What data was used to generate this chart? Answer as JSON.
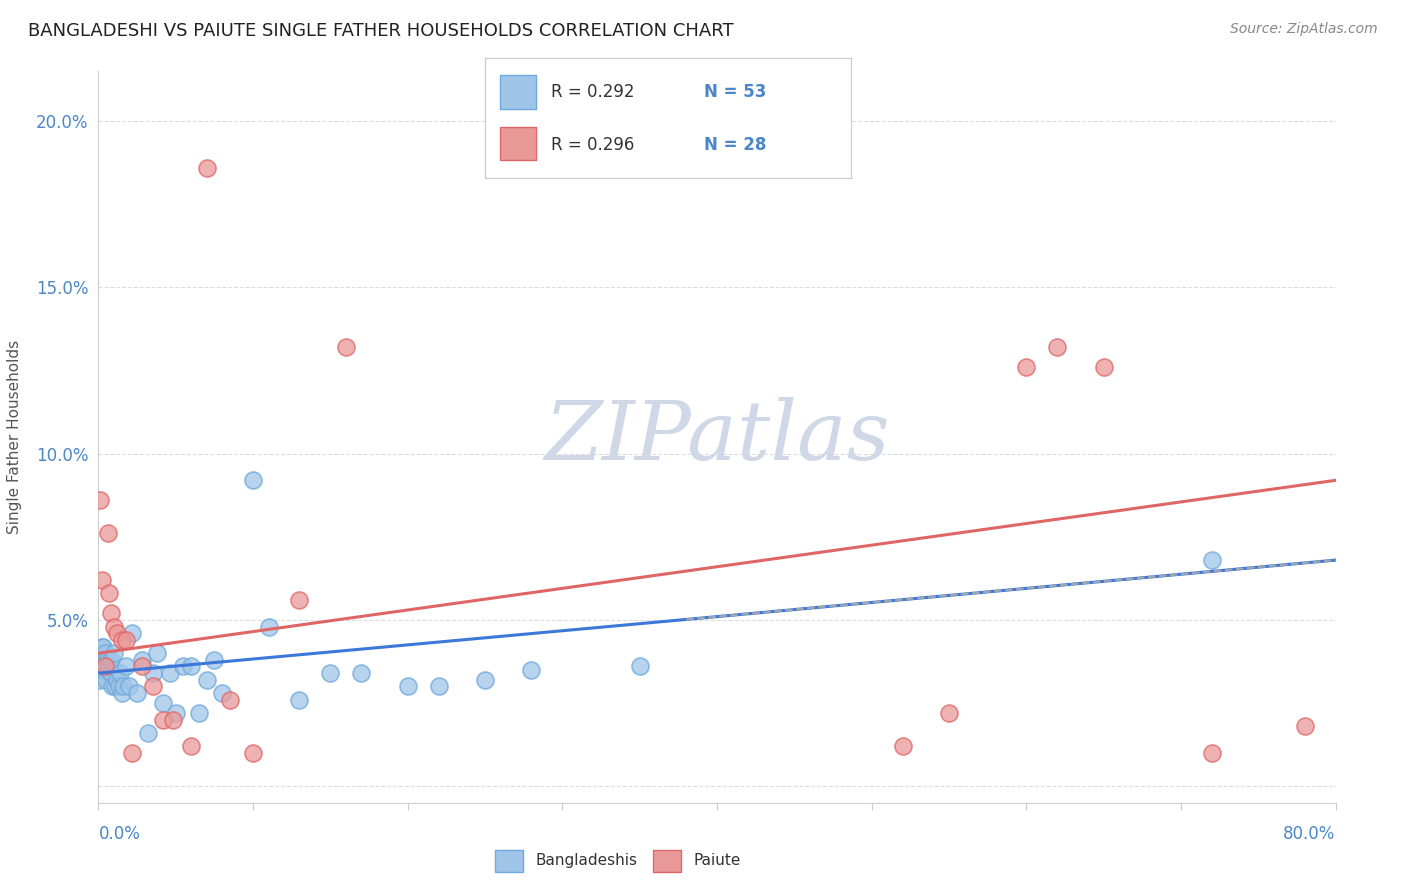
{
  "title": "BANGLADESHI VS PAIUTE SINGLE FATHER HOUSEHOLDS CORRELATION CHART",
  "source": "Source: ZipAtlas.com",
  "ylabel": "Single Father Households",
  "xlim": [
    0.0,
    0.8
  ],
  "ylim": [
    -0.005,
    0.215
  ],
  "yticks": [
    0.0,
    0.05,
    0.1,
    0.15,
    0.2
  ],
  "ytick_labels": [
    "",
    "5.0%",
    "10.0%",
    "15.0%",
    "20.0%"
  ],
  "xticks": [
    0.0,
    0.1,
    0.2,
    0.3,
    0.4,
    0.5,
    0.6,
    0.7,
    0.8
  ],
  "legend_r_blue": "R = 0.292",
  "legend_n_blue": "N = 53",
  "legend_r_pink": "R = 0.296",
  "legend_n_pink": "N = 28",
  "color_blue_fill": "#9fc5e8",
  "color_blue_edge": "#6fa8dc",
  "color_pink_fill": "#ea9999",
  "color_pink_edge": "#e06666",
  "color_blue_line": "#3c78d8",
  "color_pink_line": "#e06666",
  "watermark": "ZIPatlas",
  "watermark_color": "#d0d8e8",
  "background_color": "#ffffff",
  "grid_color": "#dddddd",
  "bangladeshi_x": [
    0.001,
    0.001,
    0.002,
    0.002,
    0.002,
    0.003,
    0.003,
    0.003,
    0.004,
    0.004,
    0.005,
    0.005,
    0.006,
    0.006,
    0.007,
    0.008,
    0.008,
    0.009,
    0.01,
    0.011,
    0.012,
    0.013,
    0.014,
    0.015,
    0.016,
    0.018,
    0.02,
    0.022,
    0.025,
    0.028,
    0.032,
    0.035,
    0.038,
    0.042,
    0.046,
    0.05,
    0.055,
    0.06,
    0.065,
    0.07,
    0.075,
    0.08,
    0.1,
    0.11,
    0.13,
    0.15,
    0.17,
    0.2,
    0.22,
    0.25,
    0.28,
    0.35,
    0.72
  ],
  "bangladeshi_y": [
    0.032,
    0.038,
    0.036,
    0.04,
    0.042,
    0.035,
    0.038,
    0.042,
    0.036,
    0.04,
    0.038,
    0.032,
    0.035,
    0.038,
    0.036,
    0.034,
    0.038,
    0.03,
    0.04,
    0.03,
    0.032,
    0.03,
    0.034,
    0.028,
    0.03,
    0.036,
    0.03,
    0.046,
    0.028,
    0.038,
    0.016,
    0.034,
    0.04,
    0.025,
    0.034,
    0.022,
    0.036,
    0.036,
    0.022,
    0.032,
    0.038,
    0.028,
    0.092,
    0.048,
    0.026,
    0.034,
    0.034,
    0.03,
    0.03,
    0.032,
    0.035,
    0.036,
    0.068
  ],
  "paiute_x": [
    0.001,
    0.002,
    0.004,
    0.006,
    0.007,
    0.008,
    0.01,
    0.012,
    0.015,
    0.018,
    0.022,
    0.028,
    0.035,
    0.042,
    0.048,
    0.06,
    0.07,
    0.085,
    0.1,
    0.13,
    0.16,
    0.52,
    0.55,
    0.6,
    0.62,
    0.65,
    0.72,
    0.78
  ],
  "paiute_y": [
    0.086,
    0.062,
    0.036,
    0.076,
    0.058,
    0.052,
    0.048,
    0.046,
    0.044,
    0.044,
    0.01,
    0.036,
    0.03,
    0.02,
    0.02,
    0.012,
    0.186,
    0.026,
    0.01,
    0.056,
    0.132,
    0.012,
    0.022,
    0.126,
    0.132,
    0.126,
    0.01,
    0.018
  ],
  "blue_line_y0": 0.034,
  "blue_line_y1": 0.068,
  "pink_line_y0": 0.04,
  "pink_line_y1": 0.092
}
